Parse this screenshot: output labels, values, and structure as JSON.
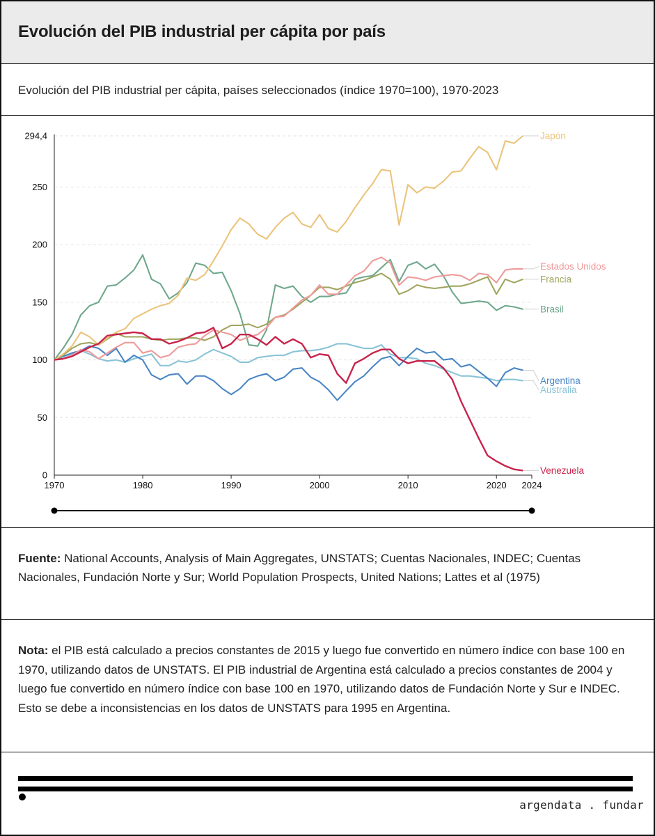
{
  "header": {
    "title": "Evolución del PIB industrial per cápita por país"
  },
  "subtitle": "Evolución del PIB industrial per cápita, países seleccionados (índice 1970=100), 1970-2023",
  "source": {
    "label": "Fuente:",
    "text": " National Accounts, Analysis of Main Aggregates, UNSTATS; Cuentas Nacionales, INDEC; Cuentas Nacionales, Fundación Norte y Sur; World Population Prospects, United Nations; Lattes et al (1975)"
  },
  "note": {
    "label": "Nota:",
    "text": " el PIB está calculado a precios constantes de 2015 y luego fue convertido en número índice con base 100 en 1970, utilizando datos de UNSTATS. El PIB industrial de Argentina está calculado a precios constantes de 2004 y luego fue convertido en número índice con base 100 en 1970, utilizando datos de Fundación Norte y Sur e INDEC. Esto se debe a inconsistencias en los datos de UNSTATS para 1995 en Argentina."
  },
  "footer": {
    "brand": "argendata . fundar"
  },
  "chart_data": {
    "type": "line",
    "title": "",
    "xlabel": "",
    "ylabel": "",
    "xlim": [
      1970,
      2024
    ],
    "ylim": [
      0,
      294.4
    ],
    "x_ticks": [
      "1970",
      "1980",
      "1990",
      "2000",
      "2010",
      "2020",
      "2024"
    ],
    "x_tick_values": [
      1970,
      1980,
      1990,
      2000,
      2010,
      2020,
      2024
    ],
    "y_ticks": [
      "0",
      "50",
      "100",
      "150",
      "200",
      "250",
      "294,4"
    ],
    "y_tick_values": [
      0,
      50,
      100,
      150,
      200,
      250,
      294.4
    ],
    "grid": true,
    "legend": "inline labels at line ends (right)",
    "brush_range": [
      1970,
      2024
    ],
    "x": [
      1970,
      1971,
      1972,
      1973,
      1974,
      1975,
      1976,
      1977,
      1978,
      1979,
      1980,
      1981,
      1982,
      1983,
      1984,
      1985,
      1986,
      1987,
      1988,
      1989,
      1990,
      1991,
      1992,
      1993,
      1994,
      1995,
      1996,
      1997,
      1998,
      1999,
      2000,
      2001,
      2002,
      2003,
      2004,
      2005,
      2006,
      2007,
      2008,
      2009,
      2010,
      2011,
      2012,
      2013,
      2014,
      2015,
      2016,
      2017,
      2018,
      2019,
      2020,
      2021,
      2022,
      2023
    ],
    "series": [
      {
        "name": "Japón",
        "color": "#ebc47c",
        "values": [
          100,
          105,
          112,
          124,
          120,
          113,
          119,
          124,
          127,
          136,
          140,
          144,
          147,
          149,
          156,
          171,
          169,
          174,
          186,
          199,
          213,
          223,
          218,
          209,
          205,
          215,
          223,
          228,
          218,
          215,
          226,
          214,
          211,
          220,
          232,
          243,
          253,
          265,
          264,
          217,
          252,
          245,
          250,
          249,
          255,
          263,
          264,
          275,
          285,
          280,
          265,
          290,
          288,
          294.4
        ]
      },
      {
        "name": "Estados Unidos",
        "color": "#ef9a9a",
        "values": [
          100,
          101,
          104,
          109,
          107,
          101,
          106,
          111,
          115,
          115,
          106,
          108,
          102,
          104,
          111,
          113,
          114,
          121,
          126,
          124,
          122,
          117,
          120,
          122,
          128,
          137,
          138,
          145,
          152,
          156,
          165,
          157,
          157,
          165,
          173,
          177,
          186,
          189,
          184,
          165,
          172,
          171,
          169,
          172,
          173,
          174,
          173,
          169,
          175,
          174,
          167,
          178,
          179,
          179
        ]
      },
      {
        "name": "Francia",
        "color": "#a0a55f",
        "values": [
          100,
          104,
          110,
          114,
          115,
          113,
          118,
          123,
          120,
          120,
          120,
          118,
          117,
          118,
          118,
          119,
          119,
          117,
          120,
          126,
          130,
          130,
          131,
          128,
          131,
          137,
          139,
          144,
          150,
          156,
          163,
          163,
          161,
          164,
          167,
          169,
          172,
          175,
          170,
          157,
          160,
          165,
          163,
          162,
          163,
          164,
          164,
          166,
          169,
          172,
          157,
          170,
          167,
          170
        ]
      },
      {
        "name": "Brasil",
        "color": "#6fa88c",
        "values": [
          100,
          110,
          122,
          139,
          147,
          150,
          164,
          165,
          171,
          178,
          191,
          170,
          166,
          153,
          158,
          167,
          184,
          182,
          175,
          176,
          160,
          140,
          113,
          112,
          126,
          165,
          162,
          164,
          155,
          150,
          155,
          155,
          157,
          158,
          170,
          172,
          173,
          180,
          187,
          168,
          182,
          185,
          179,
          183,
          173,
          159,
          149,
          150,
          151,
          150,
          143,
          147,
          146,
          144
        ]
      },
      {
        "name": "Argentina",
        "color": "#4a86c5",
        "values": [
          100,
          103,
          106,
          108,
          112,
          110,
          104,
          110,
          98,
          104,
          100,
          87,
          83,
          87,
          88,
          79,
          86,
          86,
          82,
          75,
          70,
          75,
          83,
          86,
          88,
          82,
          85,
          92,
          93,
          85,
          81,
          74,
          65,
          73,
          81,
          86,
          94,
          101,
          103,
          95,
          103,
          110,
          106,
          107,
          100,
          101,
          94,
          96,
          90,
          84,
          77,
          89,
          93,
          91
        ]
      },
      {
        "name": "Australia",
        "color": "#8ac3d6",
        "values": [
          100,
          101,
          105,
          108,
          105,
          101,
          99,
          100,
          98,
          101,
          103,
          105,
          95,
          95,
          99,
          98,
          100,
          105,
          109,
          106,
          103,
          98,
          98,
          102,
          103,
          104,
          104,
          107,
          108,
          108,
          109,
          111,
          114,
          114,
          112,
          110,
          110,
          113,
          105,
          102,
          102,
          101,
          97,
          95,
          92,
          89,
          86,
          86,
          85,
          84,
          82,
          83,
          83,
          82
        ]
      },
      {
        "name": "Venezuela",
        "color": "#c8234b",
        "values": [
          100,
          101,
          103,
          107,
          111,
          114,
          121,
          122,
          123,
          124,
          123,
          118,
          118,
          114,
          116,
          119,
          123,
          124,
          128,
          110,
          114,
          122,
          122,
          118,
          113,
          120,
          114,
          118,
          114,
          102,
          105,
          104,
          88,
          80,
          97,
          101,
          106,
          109,
          109,
          101,
          97,
          99,
          99,
          99,
          93,
          83,
          64,
          48,
          32,
          17,
          12,
          8,
          5,
          4
        ]
      }
    ]
  }
}
